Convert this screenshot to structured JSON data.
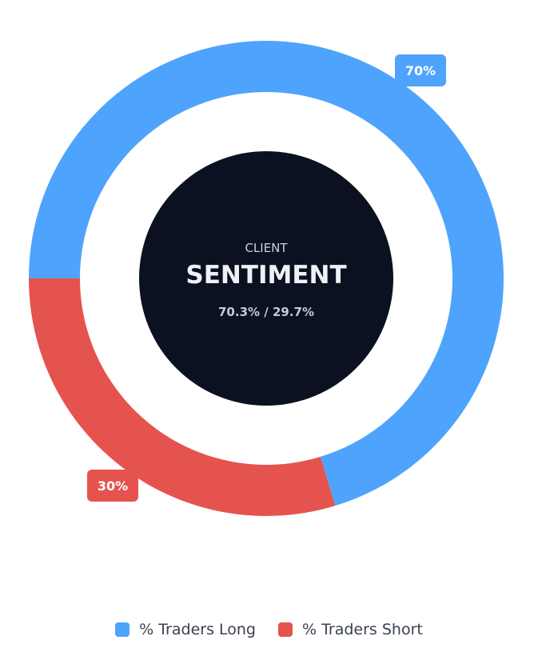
{
  "chart_data": {
    "type": "pie",
    "variant": "donut",
    "title": "",
    "center": {
      "top_label": "CLIENT",
      "main_label": "SENTIMENT",
      "sub_label": "70.3% / 29.7%"
    },
    "slices": [
      {
        "name": "% Traders Long",
        "value": 70.3,
        "label": "70%",
        "color": "#4ea3fd"
      },
      {
        "name": "% Traders Short",
        "value": 29.7,
        "label": "30%",
        "color": "#e5534f"
      }
    ],
    "legend": {
      "placement": "bottom-center",
      "items": [
        {
          "label": "% Traders Long",
          "color": "#4ea3fd"
        },
        {
          "label": "% Traders Short",
          "color": "#e5534f"
        }
      ]
    }
  },
  "colors": {
    "center_fill": "#0b1120",
    "center_top_text": "#c9d1dc",
    "center_main_text": "#eef1f5",
    "center_sub_text": "#c3cbd6"
  }
}
